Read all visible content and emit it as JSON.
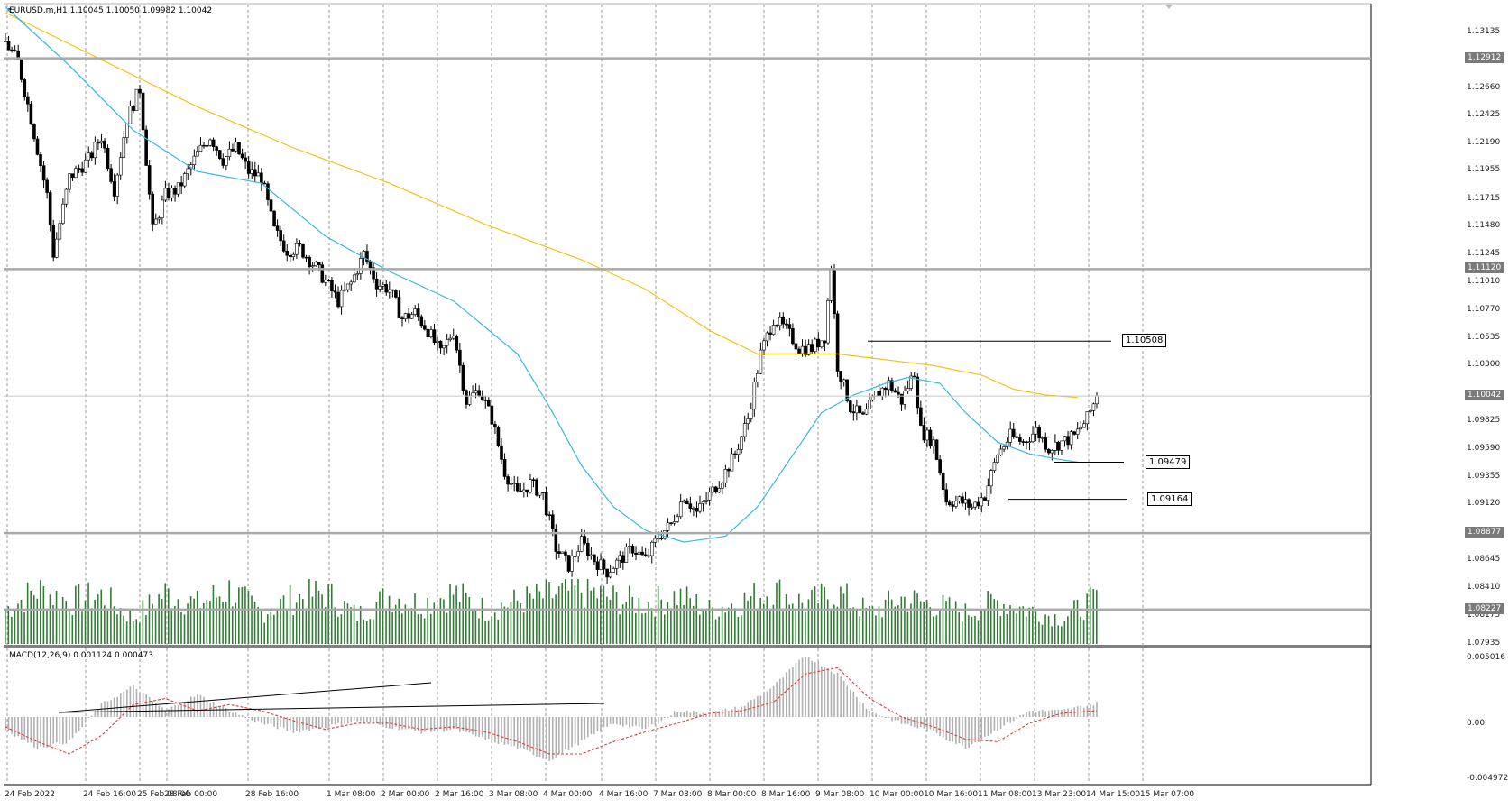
{
  "main_header": "EURUSD.m,H1  1.10045 1.10050 1.09982 1.10042",
  "macd_header": "MACD(12,26,9) 0.001124 0.000473",
  "colors": {
    "bull_candle": "#ffffff",
    "bear_candle": "#000000",
    "ma_fast": "#35b8e6",
    "ma_slow": "#f5c21b",
    "volume": "#2e7d32",
    "macd_hist": "#b0b0b0",
    "macd_signal": "#e53935",
    "grid": "#9a9a9a",
    "level_line": "#a9a9a9"
  },
  "price_axis_labels": [
    "1.13135",
    "1.12660",
    "1.12425",
    "1.12190",
    "1.11955",
    "1.11715",
    "1.11480",
    "1.11245",
    "1.11010",
    "1.10770",
    "1.10535",
    "1.10300",
    "1.09825",
    "1.09590",
    "1.09355",
    "1.09120",
    "1.08645",
    "1.08410",
    "1.08175",
    "1.07935"
  ],
  "horizontal_levels": [
    "1.12912",
    "1.11120",
    "1.08877",
    "1.08227"
  ],
  "current_price": "1.10042",
  "trend_markers": [
    "1.10508",
    "1.09479",
    "1.09164"
  ],
  "macd_axis_labels": [
    "0.005016",
    "0.00",
    "-0.004972"
  ],
  "time_axis_labels": [
    "24 Feb 2022",
    "24 Feb 16:00",
    "25 Feb 08:00",
    "28 Feb 00:00",
    "28 Feb 16:00",
    "1 Mar 08:00",
    "2 Mar 00:00",
    "2 Mar 16:00",
    "3 Mar 08:00",
    "4 Mar 00:00",
    "4 Mar 16:00",
    "7 Mar 08:00",
    "8 Mar 00:00",
    "8 Mar 16:00",
    "9 Mar 08:00",
    "10 Mar 00:00",
    "10 Mar 16:00",
    "11 Mar 08:00",
    "13 Mar 23:00",
    "14 Mar 15:00",
    "15 Mar 07:00"
  ],
  "chart_data": {
    "type": "candlestick",
    "symbol": "EURUSD.m",
    "timeframe": "H1",
    "ohlc_last": {
      "open": 1.10045,
      "high": 1.1005,
      "low": 1.09982,
      "close": 1.10042
    },
    "ylim": [
      1.07935,
      1.133
    ],
    "close_path": [
      [
        0,
        1.1305
      ],
      [
        4,
        1.1288
      ],
      [
        8,
        1.124
      ],
      [
        13,
        1.1175
      ],
      [
        15,
        1.1125
      ],
      [
        20,
        1.119
      ],
      [
        26,
        1.1205
      ],
      [
        30,
        1.1225
      ],
      [
        34,
        1.118
      ],
      [
        38,
        1.124
      ],
      [
        42,
        1.1265
      ],
      [
        46,
        1.1145
      ],
      [
        50,
        1.1175
      ],
      [
        54,
        1.118
      ],
      [
        60,
        1.121
      ],
      [
        64,
        1.1225
      ],
      [
        68,
        1.1205
      ],
      [
        72,
        1.1215
      ],
      [
        76,
        1.1195
      ],
      [
        80,
        1.119
      ],
      [
        84,
        1.1145
      ],
      [
        88,
        1.1128
      ],
      [
        92,
        1.113
      ],
      [
        98,
        1.111
      ],
      [
        104,
        1.1085
      ],
      [
        108,
        1.11
      ],
      [
        112,
        1.1125
      ],
      [
        116,
        1.11
      ],
      [
        120,
        1.1095
      ],
      [
        124,
        1.107
      ],
      [
        128,
        1.1075
      ],
      [
        132,
        1.106
      ],
      [
        136,
        1.104
      ],
      [
        140,
        1.106
      ],
      [
        144,
        1.1
      ],
      [
        148,
        1.101
      ],
      [
        152,
        1.0985
      ],
      [
        156,
        1.094
      ],
      [
        160,
        1.092
      ],
      [
        164,
        1.093
      ],
      [
        168,
        1.092
      ],
      [
        172,
        1.0875
      ],
      [
        176,
        1.086
      ],
      [
        180,
        1.088
      ],
      [
        184,
        1.0865
      ],
      [
        188,
        1.0855
      ],
      [
        192,
        1.0865
      ],
      [
        196,
        1.0875
      ],
      [
        200,
        1.0865
      ],
      [
        204,
        1.0885
      ],
      [
        208,
        1.0895
      ],
      [
        212,
        1.092
      ],
      [
        216,
        1.0905
      ],
      [
        220,
        1.092
      ],
      [
        224,
        1.0935
      ],
      [
        228,
        1.0955
      ],
      [
        232,
        1.0985
      ],
      [
        236,
        1.104
      ],
      [
        240,
        1.107
      ],
      [
        244,
        1.106
      ],
      [
        248,
        1.1045
      ],
      [
        252,
        1.1045
      ],
      [
        256,
        1.1055
      ],
      [
        258,
        1.1115
      ],
      [
        260,
        1.103
      ],
      [
        264,
        1.0995
      ],
      [
        268,
        1.0985
      ],
      [
        272,
        1.1005
      ],
      [
        276,
        1.1015
      ],
      [
        280,
        1.1
      ],
      [
        284,
        1.1025
      ],
      [
        286,
        1.0975
      ],
      [
        290,
        1.0965
      ],
      [
        294,
        1.0915
      ],
      [
        298,
        1.0915
      ],
      [
        302,
        1.091
      ],
      [
        306,
        1.092
      ],
      [
        310,
        1.0955
      ],
      [
        314,
        1.097
      ],
      [
        318,
        1.0965
      ],
      [
        322,
        1.0975
      ],
      [
        326,
        1.096
      ],
      [
        330,
        1.0965
      ],
      [
        334,
        1.097
      ],
      [
        338,
        1.0985
      ],
      [
        341,
        1.1004
      ]
    ],
    "ma_fast_path": [
      [
        0,
        1.1335
      ],
      [
        20,
        1.1285
      ],
      [
        40,
        1.123
      ],
      [
        60,
        1.1195
      ],
      [
        80,
        1.1185
      ],
      [
        100,
        1.114
      ],
      [
        120,
        1.111
      ],
      [
        140,
        1.1085
      ],
      [
        160,
        1.104
      ],
      [
        170,
        1.0995
      ],
      [
        180,
        1.0945
      ],
      [
        190,
        1.091
      ],
      [
        200,
        1.089
      ],
      [
        212,
        1.088
      ],
      [
        225,
        1.0885
      ],
      [
        235,
        1.091
      ],
      [
        245,
        1.095
      ],
      [
        255,
        1.099
      ],
      [
        265,
        1.1005
      ],
      [
        275,
        1.1015
      ],
      [
        282,
        1.102
      ],
      [
        292,
        1.1015
      ],
      [
        300,
        1.099
      ],
      [
        310,
        1.0965
      ],
      [
        320,
        1.0955
      ],
      [
        330,
        1.095
      ],
      [
        335,
        1.0948
      ]
    ],
    "ma_slow_path": [
      [
        0,
        1.133
      ],
      [
        30,
        1.129
      ],
      [
        60,
        1.125
      ],
      [
        90,
        1.1215
      ],
      [
        120,
        1.1185
      ],
      [
        150,
        1.115
      ],
      [
        180,
        1.112
      ],
      [
        200,
        1.1095
      ],
      [
        220,
        1.106
      ],
      [
        235,
        1.104
      ],
      [
        245,
        1.104
      ],
      [
        260,
        1.104
      ],
      [
        275,
        1.1035
      ],
      [
        290,
        1.103
      ],
      [
        305,
        1.1022
      ],
      [
        315,
        1.101
      ],
      [
        325,
        1.1005
      ],
      [
        335,
        1.1003
      ]
    ],
    "volume_path": [
      [
        0,
        0.6
      ],
      [
        10,
        0.95
      ],
      [
        20,
        0.75
      ],
      [
        30,
        0.85
      ],
      [
        40,
        0.45
      ],
      [
        50,
        0.9
      ],
      [
        60,
        0.7
      ],
      [
        70,
        0.95
      ],
      [
        80,
        0.55
      ],
      [
        90,
        0.8
      ],
      [
        100,
        0.9
      ],
      [
        110,
        0.5
      ],
      [
        120,
        0.85
      ],
      [
        130,
        0.7
      ],
      [
        140,
        0.9
      ],
      [
        150,
        0.6
      ],
      [
        160,
        0.75
      ],
      [
        170,
        0.85
      ],
      [
        180,
        0.95
      ],
      [
        190,
        0.8
      ],
      [
        200,
        0.7
      ],
      [
        210,
        0.85
      ],
      [
        220,
        0.6
      ],
      [
        230,
        0.75
      ],
      [
        240,
        0.95
      ],
      [
        250,
        0.7
      ],
      [
        260,
        0.9
      ],
      [
        270,
        0.55
      ],
      [
        280,
        0.8
      ],
      [
        290,
        0.7
      ],
      [
        300,
        0.55
      ],
      [
        310,
        0.75
      ],
      [
        320,
        0.6
      ],
      [
        330,
        0.45
      ],
      [
        341,
        0.8
      ]
    ],
    "macd_hist_path": [
      [
        0,
        -0.001
      ],
      [
        10,
        -0.0025
      ],
      [
        20,
        -0.002
      ],
      [
        30,
        0.001
      ],
      [
        40,
        0.0025
      ],
      [
        50,
        0.0005
      ],
      [
        60,
        0.0018
      ],
      [
        70,
        0.0005
      ],
      [
        80,
        -0.0005
      ],
      [
        90,
        -0.0012
      ],
      [
        100,
        -0.0008
      ],
      [
        110,
        -0.0003
      ],
      [
        120,
        -0.0008
      ],
      [
        130,
        -0.0012
      ],
      [
        140,
        -0.001
      ],
      [
        150,
        -0.0018
      ],
      [
        160,
        -0.0025
      ],
      [
        170,
        -0.0035
      ],
      [
        180,
        -0.002
      ],
      [
        190,
        -0.0005
      ],
      [
        200,
        -0.001
      ],
      [
        210,
        0.0005
      ],
      [
        220,
        0.0003
      ],
      [
        230,
        0.0008
      ],
      [
        240,
        0.0025
      ],
      [
        250,
        0.005
      ],
      [
        260,
        0.0035
      ],
      [
        270,
        0.0005
      ],
      [
        280,
        -0.0005
      ],
      [
        290,
        -0.0012
      ],
      [
        300,
        -0.0025
      ],
      [
        310,
        -0.001
      ],
      [
        320,
        0.0005
      ],
      [
        330,
        0.0005
      ],
      [
        341,
        0.0011
      ]
    ],
    "macd_signal_path": [
      [
        0,
        -0.0008
      ],
      [
        10,
        -0.002
      ],
      [
        20,
        -0.003
      ],
      [
        30,
        -0.0015
      ],
      [
        40,
        0.001
      ],
      [
        50,
        0.0015
      ],
      [
        60,
        0.0005
      ],
      [
        70,
        0.001
      ],
      [
        80,
        0.0005
      ],
      [
        90,
        -0.0003
      ],
      [
        100,
        -0.001
      ],
      [
        110,
        -0.0005
      ],
      [
        120,
        -0.0005
      ],
      [
        130,
        -0.001
      ],
      [
        140,
        -0.0008
      ],
      [
        150,
        -0.0012
      ],
      [
        160,
        -0.002
      ],
      [
        170,
        -0.003
      ],
      [
        180,
        -0.003
      ],
      [
        190,
        -0.002
      ],
      [
        200,
        -0.0012
      ],
      [
        210,
        -0.0005
      ],
      [
        220,
        0.0003
      ],
      [
        230,
        0.0005
      ],
      [
        240,
        0.0012
      ],
      [
        250,
        0.0035
      ],
      [
        260,
        0.004
      ],
      [
        270,
        0.0015
      ],
      [
        280,
        0.0
      ],
      [
        290,
        -0.0008
      ],
      [
        300,
        -0.0018
      ],
      [
        310,
        -0.002
      ],
      [
        320,
        -0.0005
      ],
      [
        330,
        0.0003
      ],
      [
        341,
        0.0005
      ]
    ]
  }
}
